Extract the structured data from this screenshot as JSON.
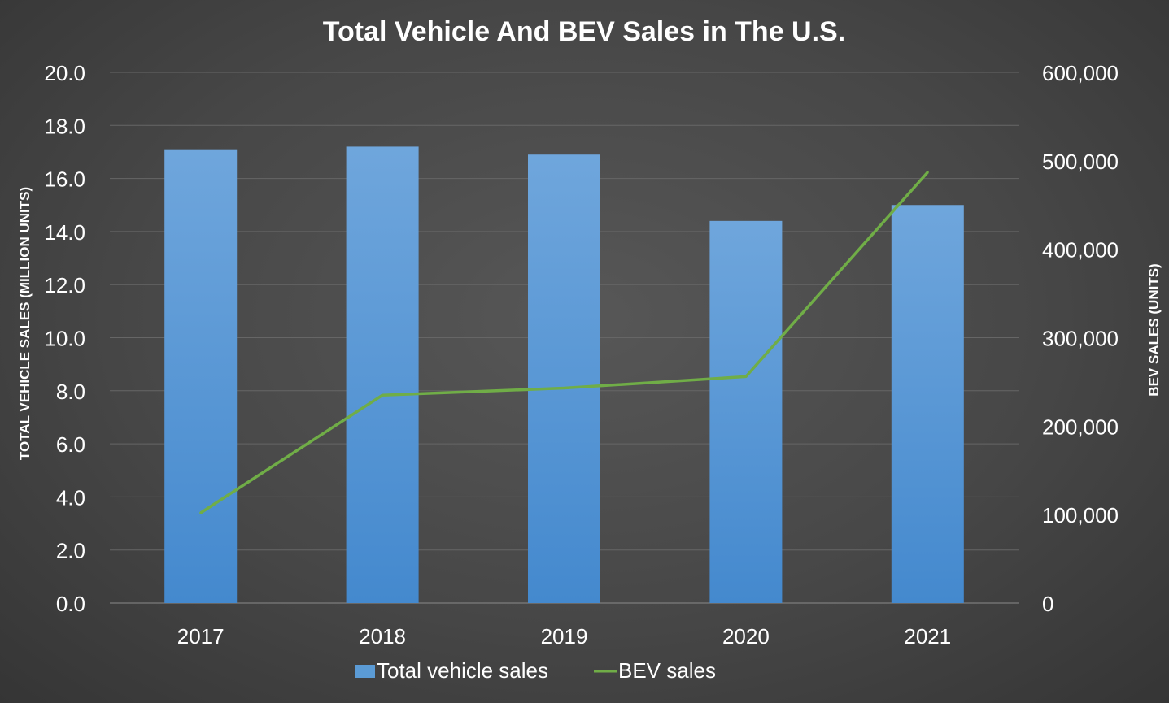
{
  "chart_data": {
    "type": "bar+line",
    "title": "Total Vehicle And BEV Sales in The U.S.",
    "categories": [
      "2017",
      "2018",
      "2019",
      "2020",
      "2021"
    ],
    "series": [
      {
        "name": "Total vehicle sales",
        "type": "bar",
        "axis": "left",
        "values": [
          17.1,
          17.2,
          16.9,
          14.4,
          15.0
        ],
        "color": "#5b9bd5"
      },
      {
        "name": "BEV sales",
        "type": "line",
        "axis": "right",
        "values": [
          102000,
          235000,
          243000,
          256000,
          487000
        ],
        "color": "#70ad47"
      }
    ],
    "ylabel_left": "TOTAL VEHICLE SALES (MILLION UNITS)",
    "ylabel_right": "BEV SALES (UNITS)",
    "ylim_left": [
      0,
      20
    ],
    "ylim_right": [
      0,
      600000
    ],
    "yticks_left": [
      "0.0",
      "2.0",
      "4.0",
      "6.0",
      "8.0",
      "10.0",
      "12.0",
      "14.0",
      "16.0",
      "18.0",
      "20.0"
    ],
    "yticks_right": [
      "0",
      "100,000",
      "200,000",
      "300,000",
      "400,000",
      "500,000",
      "600,000"
    ],
    "grid": true,
    "legend": "bottom"
  }
}
